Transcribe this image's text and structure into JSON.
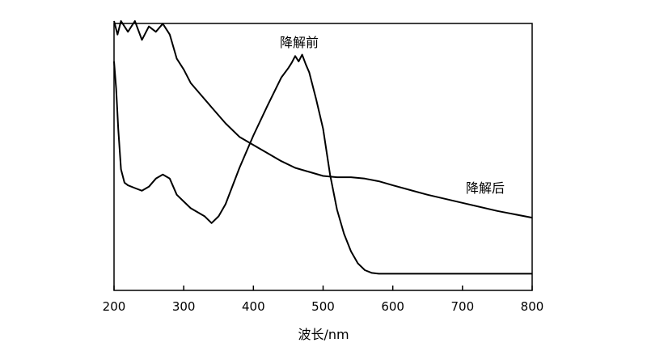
{
  "chart_data": {
    "type": "line",
    "xlabel": "波长/nm",
    "ylabel": "",
    "xlim": [
      200,
      800
    ],
    "ylim": [
      0,
      1
    ],
    "x_ticks": [
      200,
      300,
      400,
      500,
      600,
      700,
      800
    ],
    "y_ticks_shown": false,
    "grid": false,
    "legend": "none",
    "series": [
      {
        "name": "降解前",
        "x": [
          200,
          203,
          206,
          210,
          215,
          220,
          230,
          240,
          250,
          260,
          270,
          280,
          290,
          300,
          310,
          320,
          330,
          340,
          350,
          360,
          380,
          400,
          420,
          440,
          450,
          455,
          460,
          465,
          470,
          475,
          480,
          490,
          500,
          510,
          520,
          530,
          540,
          550,
          560,
          570,
          580,
          600,
          650,
          700,
          750,
          800
        ],
        "y": [
          0.85,
          0.75,
          0.6,
          0.45,
          0.4,
          0.39,
          0.38,
          0.37,
          0.385,
          0.415,
          0.43,
          0.415,
          0.355,
          0.33,
          0.305,
          0.29,
          0.275,
          0.25,
          0.275,
          0.32,
          0.455,
          0.575,
          0.685,
          0.79,
          0.825,
          0.845,
          0.87,
          0.85,
          0.875,
          0.84,
          0.81,
          0.71,
          0.6,
          0.43,
          0.3,
          0.21,
          0.145,
          0.1,
          0.075,
          0.065,
          0.062,
          0.062,
          0.062,
          0.062,
          0.062,
          0.062
        ]
      },
      {
        "name": "降解后",
        "x": [
          200,
          205,
          210,
          220,
          230,
          240,
          250,
          260,
          270,
          280,
          290,
          300,
          310,
          320,
          330,
          340,
          360,
          380,
          400,
          420,
          440,
          460,
          480,
          500,
          520,
          540,
          560,
          580,
          600,
          650,
          700,
          750,
          800
        ],
        "y": [
          1.0,
          0.95,
          1.0,
          0.96,
          1.0,
          0.93,
          0.98,
          0.96,
          0.99,
          0.95,
          0.86,
          0.82,
          0.77,
          0.74,
          0.71,
          0.68,
          0.62,
          0.57,
          0.54,
          0.51,
          0.48,
          0.455,
          0.44,
          0.425,
          0.42,
          0.42,
          0.415,
          0.405,
          0.39,
          0.355,
          0.325,
          0.295,
          0.27
        ]
      }
    ]
  }
}
